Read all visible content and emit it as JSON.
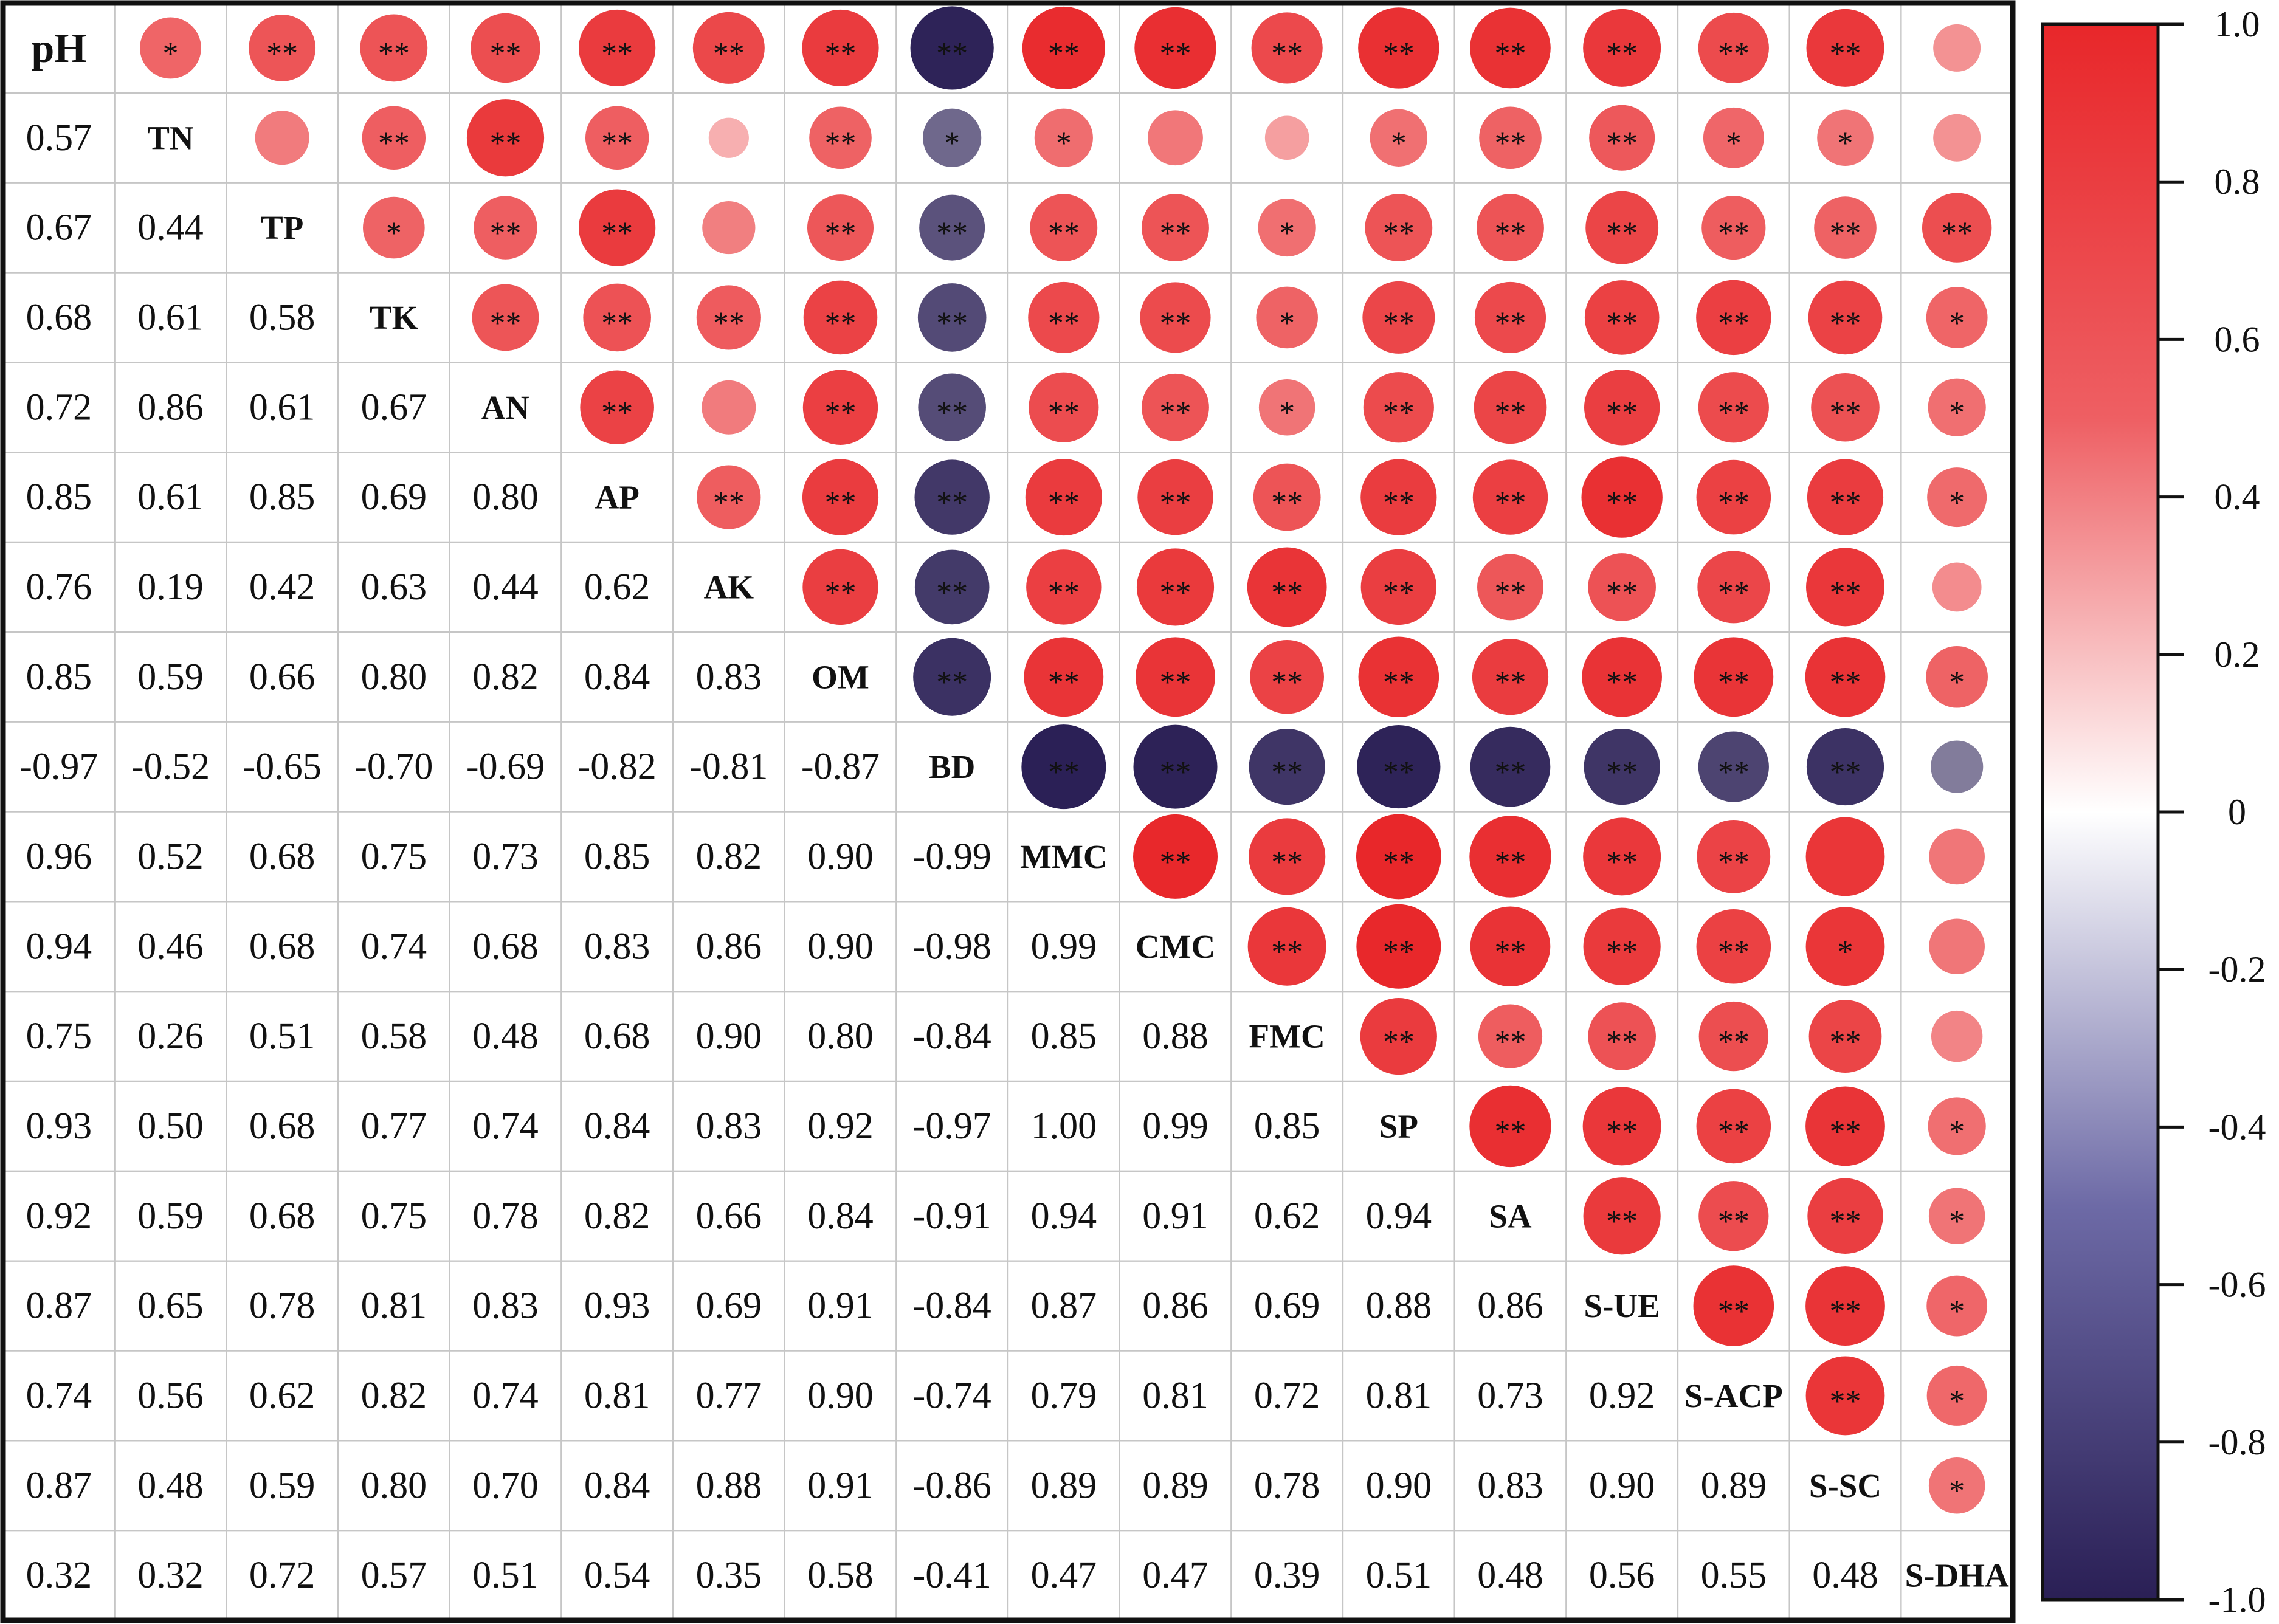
{
  "chart_data": {
    "type": "heatmap",
    "variables": [
      "pH",
      "TN",
      "TP",
      "TK",
      "AN",
      "AP",
      "AK",
      "OM",
      "BD",
      "MMC",
      "CMC",
      "FMC",
      "SP",
      "SA",
      "S-UE",
      "S-ACP",
      "S-SC",
      "S-DHA"
    ],
    "lower_values": [
      [],
      [
        0.57
      ],
      [
        0.67,
        0.44
      ],
      [
        0.68,
        0.61,
        0.58
      ],
      [
        0.72,
        0.86,
        0.61,
        0.67
      ],
      [
        0.85,
        0.61,
        0.85,
        0.69,
        0.8
      ],
      [
        0.76,
        0.19,
        0.42,
        0.63,
        0.44,
        0.62
      ],
      [
        0.85,
        0.59,
        0.66,
        0.8,
        0.82,
        0.84,
        0.83
      ],
      [
        -0.97,
        -0.52,
        -0.65,
        -0.7,
        -0.69,
        -0.82,
        -0.81,
        -0.87
      ],
      [
        0.96,
        0.52,
        0.68,
        0.75,
        0.73,
        0.85,
        0.82,
        0.9,
        -0.99
      ],
      [
        0.94,
        0.46,
        0.68,
        0.74,
        0.68,
        0.83,
        0.86,
        0.9,
        -0.98,
        0.99
      ],
      [
        0.75,
        0.26,
        0.51,
        0.58,
        0.48,
        0.68,
        0.9,
        0.8,
        -0.84,
        0.85,
        0.88
      ],
      [
        0.93,
        0.5,
        0.68,
        0.77,
        0.74,
        0.84,
        0.83,
        0.92,
        -0.97,
        1.0,
        0.99,
        0.85
      ],
      [
        0.92,
        0.59,
        0.68,
        0.75,
        0.78,
        0.82,
        0.66,
        0.84,
        -0.91,
        0.94,
        0.91,
        0.62,
        0.94
      ],
      [
        0.87,
        0.65,
        0.78,
        0.81,
        0.83,
        0.93,
        0.69,
        0.91,
        -0.84,
        0.87,
        0.86,
        0.69,
        0.88,
        0.86
      ],
      [
        0.74,
        0.56,
        0.62,
        0.82,
        0.74,
        0.81,
        0.77,
        0.9,
        -0.74,
        0.79,
        0.81,
        0.72,
        0.81,
        0.73,
        0.92
      ],
      [
        0.87,
        0.48,
        0.59,
        0.8,
        0.7,
        0.84,
        0.88,
        0.91,
        -0.86,
        0.89,
        0.89,
        0.78,
        0.9,
        0.83,
        0.9,
        0.89
      ],
      [
        0.32,
        0.32,
        0.72,
        0.57,
        0.51,
        0.54,
        0.35,
        0.58,
        -0.41,
        0.47,
        0.47,
        0.39,
        0.51,
        0.48,
        0.56,
        0.55,
        0.48
      ]
    ],
    "significance": [
      [
        "*",
        "**",
        "**",
        "**",
        "**",
        "**",
        "**",
        "**",
        "**",
        "**",
        "**",
        "**",
        "**",
        "**",
        "**",
        "**",
        ""
      ],
      [
        "",
        "**",
        "**",
        "**",
        "",
        "**",
        "*",
        "*",
        "",
        "",
        "*",
        "**",
        "**",
        "*",
        "*",
        ""
      ],
      [
        "*",
        "**",
        "**",
        "",
        "**",
        "**",
        "**",
        "**",
        "*",
        "**",
        "**",
        "**",
        "**",
        "**",
        "**"
      ],
      [
        "**",
        "**",
        "**",
        "**",
        "**",
        "**",
        "**",
        "*",
        "**",
        "**",
        "**",
        "**",
        "**",
        "*"
      ],
      [
        "**",
        "",
        "**",
        "**",
        "**",
        "**",
        "*",
        "**",
        "**",
        "**",
        "**",
        "**",
        "*"
      ],
      [
        "**",
        "**",
        "**",
        "**",
        "**",
        "**",
        "**",
        "**",
        "**",
        "**",
        "**",
        "*"
      ],
      [
        "**",
        "**",
        "**",
        "**",
        "**",
        "**",
        "**",
        "**",
        "**",
        "**",
        ""
      ],
      [
        "**",
        "**",
        "**",
        "**",
        "**",
        "**",
        "**",
        "**",
        "**",
        "*"
      ],
      [
        "**",
        "**",
        "**",
        "**",
        "**",
        "**",
        "**",
        "**",
        ""
      ],
      [
        "**",
        "**",
        "**",
        "**",
        "**",
        "**",
        ""
      ],
      [
        "**",
        "**",
        "**",
        "**",
        "**",
        "*"
      ],
      [
        "**",
        "**",
        "**",
        "**",
        "**",
        ""
      ],
      [
        "**",
        "**",
        "**",
        "**",
        "*"
      ],
      [
        "**",
        "**",
        "**",
        "*"
      ],
      [
        "**",
        "**",
        "*"
      ],
      [
        "**",
        "*"
      ],
      [
        "*"
      ]
    ],
    "colorbar": {
      "range": [
        -1,
        1
      ],
      "ticks": [
        "1.0",
        "0.8",
        "0.6",
        "0.4",
        "0.2",
        "0",
        "-0.2",
        "-0.4",
        "-0.6",
        "-0.8",
        "-1.0"
      ],
      "colors": {
        "low": "#2a1f55",
        "mid": "#ffffff",
        "high": "#e8272a"
      }
    }
  }
}
